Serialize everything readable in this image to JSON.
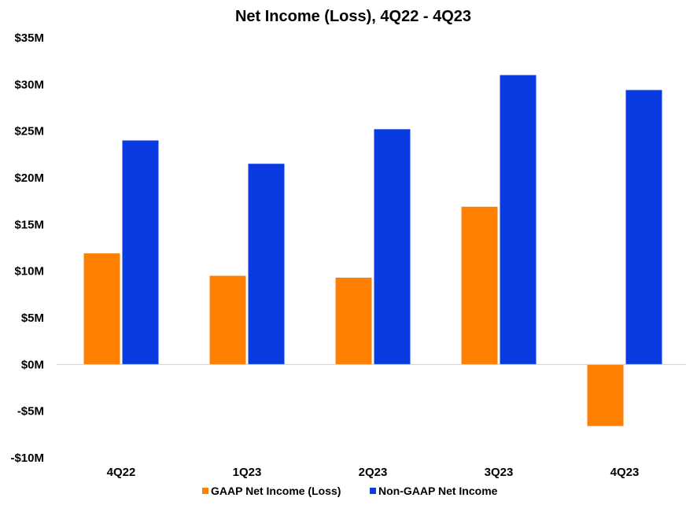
{
  "chart_data": {
    "type": "bar",
    "title": "Net Income (Loss), 4Q22 - 4Q23",
    "categories": [
      "4Q22",
      "1Q23",
      "2Q23",
      "3Q23",
      "4Q23"
    ],
    "series": [
      {
        "name": "GAAP Net Income (Loss)",
        "color": "#FF7F00",
        "values": [
          11.9,
          9.5,
          9.3,
          16.9,
          -6.6
        ]
      },
      {
        "name": "Non-GAAP Net Income",
        "color": "#0A3BE0",
        "values": [
          24.0,
          21.5,
          25.2,
          31.0,
          29.4
        ]
      }
    ],
    "ylim": [
      -10,
      35
    ],
    "yticks": [
      -10,
      -5,
      0,
      5,
      10,
      15,
      20,
      25,
      30,
      35
    ],
    "ytick_labels": [
      "-$10M",
      "-$5M",
      "$0M",
      "$5M",
      "$10M",
      "$15M",
      "$20M",
      "$25M",
      "$30M",
      "$35M"
    ],
    "xlabel": "",
    "ylabel": "",
    "grid": false,
    "legend_position": "bottom"
  }
}
